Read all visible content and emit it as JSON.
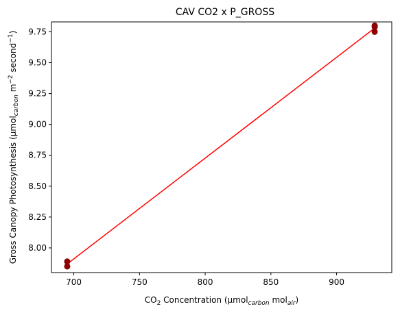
{
  "chart_data": {
    "type": "scatter",
    "title": "CAV CO2 x P_GROSS",
    "xlabel": {
      "prefix": "CO",
      "sub1": "2",
      "middle": " Concentration (µmol",
      "sub2": "carbon",
      "middle2": " mol",
      "sub3": "air",
      "suffix": ")"
    },
    "ylabel": {
      "prefix": "Gross Canopy Photosynthesis (µmol",
      "sub1": "carbon",
      "middle": " m",
      "sup1": "−2",
      "middle2": " second",
      "sup2": "−1",
      "suffix": ")"
    },
    "xlim": [
      683,
      942
    ],
    "ylim": [
      7.8,
      9.83
    ],
    "x_ticks": [
      700,
      750,
      800,
      850,
      900
    ],
    "x_tick_labels": [
      "700",
      "750",
      "800",
      "850",
      "900"
    ],
    "y_ticks": [
      8.0,
      8.25,
      8.5,
      8.75,
      9.0,
      9.25,
      9.5,
      9.75
    ],
    "y_tick_labels": [
      "8.00",
      "8.25",
      "8.50",
      "8.75",
      "9.00",
      "9.25",
      "9.50",
      "9.75"
    ],
    "grid": false,
    "legend": "none",
    "series": [
      {
        "kind": "scatter",
        "color": "#8b0000",
        "points": [
          {
            "x": 695,
            "y": 7.89
          },
          {
            "x": 695,
            "y": 7.85
          },
          {
            "x": 929,
            "y": 9.8
          },
          {
            "x": 929,
            "y": 9.79
          },
          {
            "x": 929,
            "y": 9.75
          }
        ]
      },
      {
        "kind": "line",
        "color": "#ff0000",
        "points": [
          {
            "x": 695,
            "y": 7.87
          },
          {
            "x": 929,
            "y": 9.78
          }
        ]
      }
    ]
  }
}
